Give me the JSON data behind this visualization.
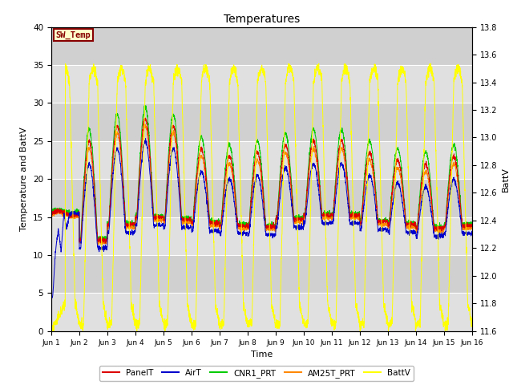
{
  "title": "Temperatures",
  "xlabel": "Time",
  "ylabel_left": "Temperature and BattV",
  "ylabel_right": "BattV",
  "ylim_left": [
    0,
    40
  ],
  "ylim_right": [
    11.6,
    13.8
  ],
  "xlim": [
    0,
    15
  ],
  "xtick_labels": [
    "Jun 1",
    "Jun 2",
    "Jun 3",
    "Jun 4",
    "Jun 5",
    "Jun 6",
    "Jun 7",
    "Jun 8",
    "Jun 9",
    "Jun 10",
    "Jun 11",
    "Jun 12",
    "Jun 13",
    "Jun 14",
    "Jun 15",
    "Jun 16"
  ],
  "legend_box_label": "SW_Temp",
  "colors": {
    "PanelT": "#dd0000",
    "AirT": "#0000cc",
    "CNR1_PRT": "#00cc00",
    "AM25T_PRT": "#ff8800",
    "BattV": "#ffff00"
  },
  "bg_color": "#dcdcdc",
  "batt_min": 11.6,
  "batt_max": 13.8
}
